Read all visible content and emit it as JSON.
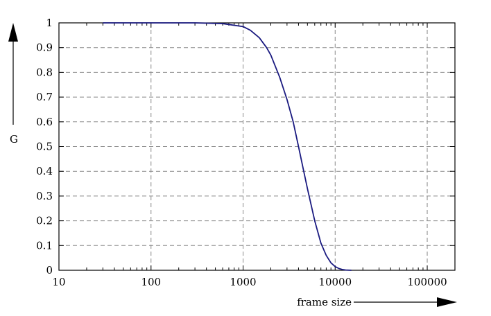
{
  "chart_data": {
    "type": "line",
    "title": "",
    "xlabel": "frame size",
    "ylabel": "G",
    "x_scale": "log",
    "xlim": [
      10,
      200000
    ],
    "ylim": [
      0,
      1
    ],
    "grid": true,
    "x_ticks": [
      "10",
      "100",
      "1000",
      "10000",
      "100000"
    ],
    "y_ticks": [
      "0",
      "0.1",
      "0.2",
      "0.3",
      "0.4",
      "0.5",
      "0.6",
      "0.7",
      "0.8",
      "0.9",
      "1"
    ],
    "series": [
      {
        "color": "#1a1a80",
        "x": [
          30,
          100,
          300,
          600,
          1000,
          1200,
          1500,
          1800,
          2000,
          2500,
          3000,
          3500,
          4000,
          4500,
          5000,
          6000,
          7000,
          8000,
          9000,
          10000,
          11000,
          12000,
          13000,
          15000
        ],
        "y": [
          1.0,
          1.0,
          1.0,
          0.997,
          0.985,
          0.97,
          0.94,
          0.9,
          0.87,
          0.78,
          0.69,
          0.6,
          0.5,
          0.41,
          0.33,
          0.2,
          0.11,
          0.06,
          0.03,
          0.015,
          0.007,
          0.003,
          0.001,
          0.0
        ]
      }
    ]
  }
}
